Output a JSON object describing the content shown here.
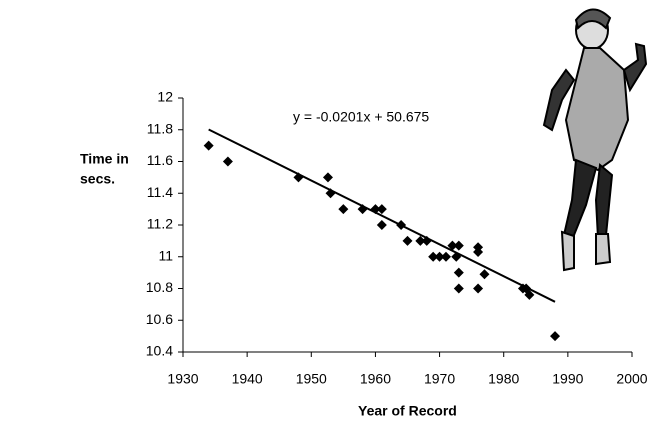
{
  "chart_data": {
    "type": "scatter",
    "x_label": "Year of Record",
    "y_label": [
      "Time in",
      "secs."
    ],
    "trendline_label": "y = -0.0201x + 50.675",
    "trendline": {
      "slope": -0.0201,
      "intercept": 50.675
    },
    "color": "#000000",
    "x": [
      1934,
      1937,
      1948,
      1952.6,
      1953,
      1955,
      1958,
      1960,
      1961,
      1961,
      1964,
      1965,
      1967,
      1968,
      1969,
      1970,
      1971,
      1972,
      1973,
      1972.6,
      1973,
      1973,
      1976,
      1976,
      1976,
      1977,
      1983,
      1983.5,
      1984,
      1988
    ],
    "values": [
      11.7,
      11.6,
      11.5,
      11.5,
      11.4,
      11.3,
      11.3,
      11.3,
      11.3,
      11.2,
      11.2,
      11.1,
      11.1,
      11.1,
      11.0,
      11.0,
      11.0,
      11.07,
      11.07,
      11.0,
      10.9,
      10.8,
      11.06,
      11.03,
      10.8,
      10.89,
      10.8,
      10.8,
      10.76,
      10.5
    ],
    "xlim": [
      1930,
      2000
    ],
    "xticks": [
      1930,
      1940,
      1950,
      1960,
      1970,
      1980,
      1990,
      2000
    ],
    "ylim": [
      10.4,
      12
    ],
    "yticks": [
      10.4,
      10.6,
      10.8,
      11,
      11.2,
      11.4,
      11.6,
      11.8,
      12
    ],
    "grid": false
  }
}
